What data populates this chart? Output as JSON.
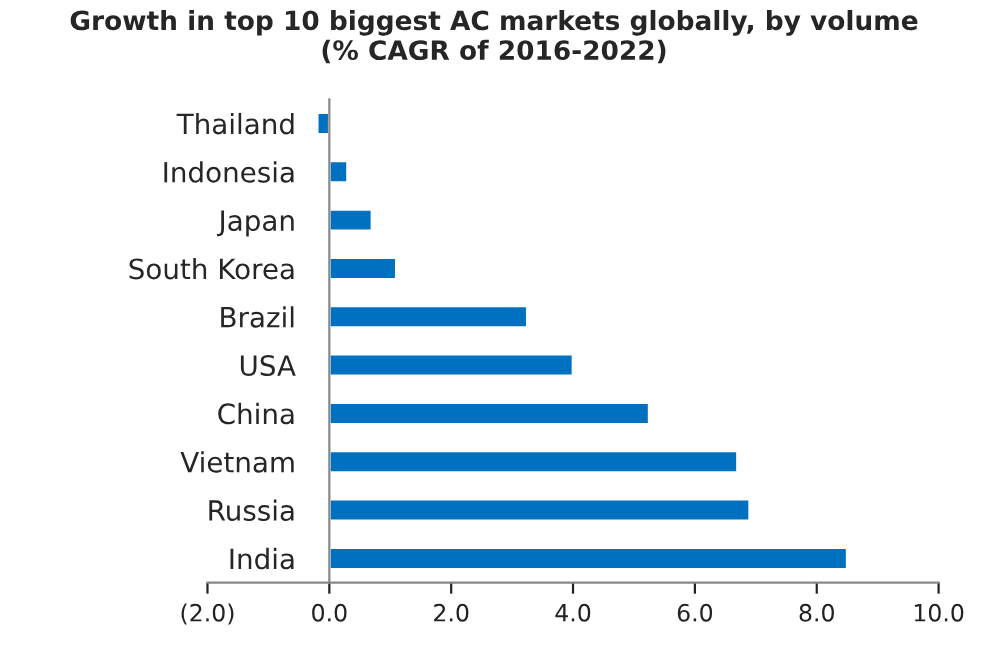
{
  "chart_data": {
    "type": "bar",
    "orientation": "horizontal",
    "title": "Growth in top 10 biggest AC markets globally, by volume\n(% CAGR of 2016-2022)",
    "categories": [
      "Thailand",
      "Indonesia",
      "Japan",
      "South Korea",
      "Brazil",
      "USA",
      "China",
      "Vietnam",
      "Russia",
      "India"
    ],
    "values": [
      -0.2,
      0.3,
      0.7,
      1.1,
      3.25,
      4.0,
      5.25,
      6.7,
      6.9,
      8.5
    ],
    "color": "#0070c0",
    "xlim": [
      -2,
      10
    ],
    "xticks": [
      {
        "value": -2,
        "label": "(2.0)"
      },
      {
        "value": 0,
        "label": "0.0"
      },
      {
        "value": 2,
        "label": "2.0"
      },
      {
        "value": 4,
        "label": "4.0"
      },
      {
        "value": 6,
        "label": "6.0"
      },
      {
        "value": 8,
        "label": "8.0"
      },
      {
        "value": 10,
        "label": "10.0"
      }
    ],
    "grid": false,
    "legend": false
  }
}
